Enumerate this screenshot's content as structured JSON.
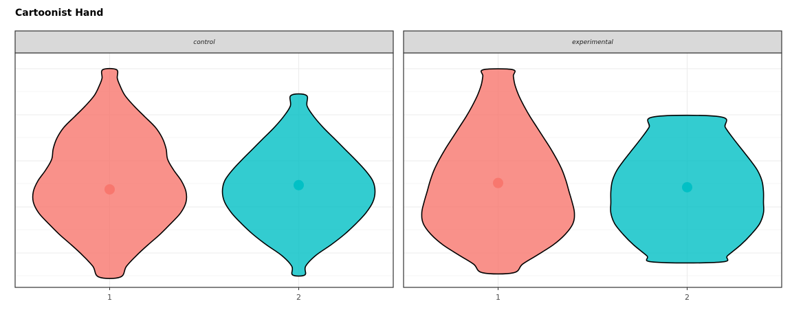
{
  "title": "Cartoonist Hand",
  "colors": {
    "group_1": "#F8766D",
    "group_2": "#00BFC4",
    "strip_background": "#D9D9D9",
    "grid": "#EBEBEB",
    "outline": "#000000"
  },
  "chart_data": {
    "type": "violin",
    "title": "Cartoonist Hand",
    "xlabel": "",
    "ylabel": "",
    "facets": [
      "control",
      "experimental"
    ],
    "categories": [
      "1",
      "2"
    ],
    "y_axis_labels_shown": false,
    "ylim": [
      0,
      100
    ],
    "grid": true,
    "legend": "none",
    "series": [
      {
        "facet": "control",
        "category": "1",
        "color": "#F8766D",
        "point": 41,
        "range": [
          0,
          97
        ],
        "profile": [
          [
            0,
            0.14
          ],
          [
            5,
            0.22
          ],
          [
            10,
            0.35
          ],
          [
            15,
            0.5
          ],
          [
            20,
            0.66
          ],
          [
            25,
            0.8
          ],
          [
            30,
            0.93
          ],
          [
            35,
            1.0
          ],
          [
            40,
            1.0
          ],
          [
            45,
            0.94
          ],
          [
            50,
            0.84
          ],
          [
            55,
            0.76
          ],
          [
            60,
            0.74
          ],
          [
            65,
            0.69
          ],
          [
            70,
            0.6
          ],
          [
            75,
            0.46
          ],
          [
            80,
            0.32
          ],
          [
            85,
            0.2
          ],
          [
            90,
            0.13
          ],
          [
            93,
            0.1
          ],
          [
            97,
            0.09
          ]
        ]
      },
      {
        "facet": "control",
        "category": "2",
        "color": "#00BFC4",
        "point": 43,
        "range": [
          1,
          85
        ],
        "profile": [
          [
            1,
            0.08
          ],
          [
            5,
            0.09
          ],
          [
            10,
            0.22
          ],
          [
            15,
            0.42
          ],
          [
            20,
            0.6
          ],
          [
            25,
            0.75
          ],
          [
            30,
            0.88
          ],
          [
            35,
            0.97
          ],
          [
            40,
            1.0
          ],
          [
            45,
            0.97
          ],
          [
            50,
            0.87
          ],
          [
            55,
            0.74
          ],
          [
            60,
            0.6
          ],
          [
            65,
            0.46
          ],
          [
            70,
            0.32
          ],
          [
            75,
            0.2
          ],
          [
            80,
            0.11
          ],
          [
            85,
            0.1
          ]
        ]
      },
      {
        "facet": "experimental",
        "category": "1",
        "color": "#F8766D",
        "point": 44,
        "range": [
          2,
          97
        ],
        "profile": [
          [
            2,
            0.2
          ],
          [
            6,
            0.32
          ],
          [
            10,
            0.5
          ],
          [
            15,
            0.72
          ],
          [
            20,
            0.88
          ],
          [
            25,
            0.98
          ],
          [
            30,
            1.0
          ],
          [
            35,
            0.97
          ],
          [
            40,
            0.93
          ],
          [
            45,
            0.89
          ],
          [
            50,
            0.84
          ],
          [
            55,
            0.77
          ],
          [
            60,
            0.69
          ],
          [
            65,
            0.6
          ],
          [
            70,
            0.51
          ],
          [
            75,
            0.42
          ],
          [
            80,
            0.34
          ],
          [
            85,
            0.27
          ],
          [
            90,
            0.22
          ],
          [
            94,
            0.2
          ],
          [
            97,
            0.19
          ]
        ]
      },
      {
        "facet": "experimental",
        "category": "2",
        "color": "#00BFC4",
        "point": 42,
        "range": [
          7,
          75
        ],
        "profile": [
          [
            7,
            0.44
          ],
          [
            10,
            0.53
          ],
          [
            15,
            0.7
          ],
          [
            20,
            0.84
          ],
          [
            25,
            0.95
          ],
          [
            30,
            1.0
          ],
          [
            35,
            1.0
          ],
          [
            40,
            1.0
          ],
          [
            45,
            0.98
          ],
          [
            50,
            0.92
          ],
          [
            55,
            0.82
          ],
          [
            60,
            0.71
          ],
          [
            65,
            0.6
          ],
          [
            70,
            0.5
          ],
          [
            75,
            0.43
          ]
        ]
      }
    ]
  }
}
